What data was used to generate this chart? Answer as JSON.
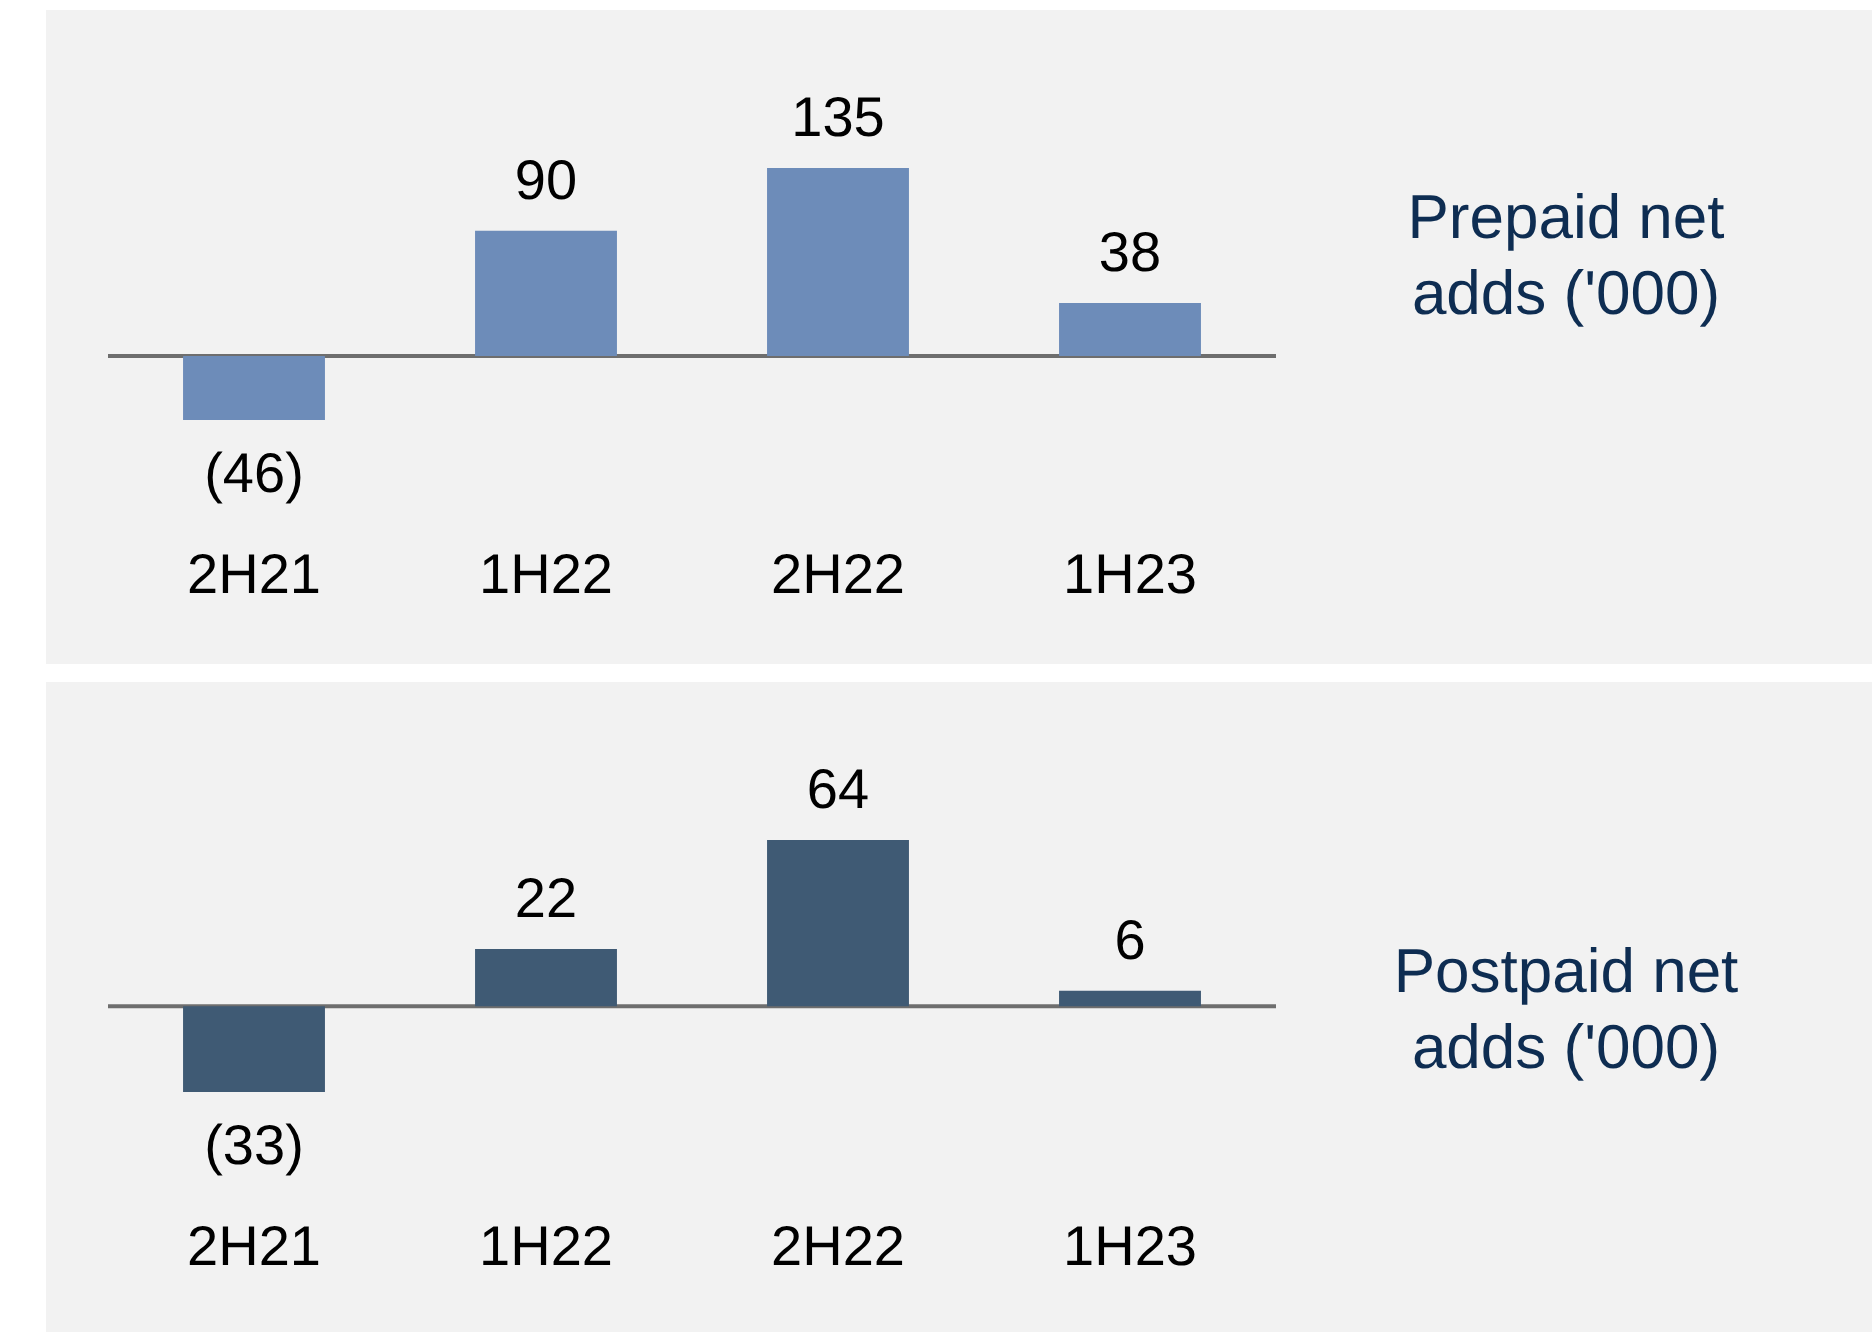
{
  "chart_data": [
    {
      "type": "bar",
      "ylabel": "Prepaid net adds ('000)",
      "categories": [
        "2H21",
        "1H22",
        "2H22",
        "1H23"
      ],
      "values": [
        -46,
        90,
        135,
        38
      ],
      "value_labels": [
        "(46)",
        "90",
        "135",
        "38"
      ],
      "color": "#6d8cb9",
      "tick_labels": "x"
    },
    {
      "type": "bar",
      "ylabel": "Postpaid net adds ('000)",
      "categories": [
        "2H21",
        "1H22",
        "2H22",
        "1H23"
      ],
      "values": [
        -33,
        22,
        64,
        6
      ],
      "value_labels": [
        "(33)",
        "22",
        "64",
        "6"
      ],
      "color": "#3f5a74",
      "tick_labels": "x"
    }
  ]
}
